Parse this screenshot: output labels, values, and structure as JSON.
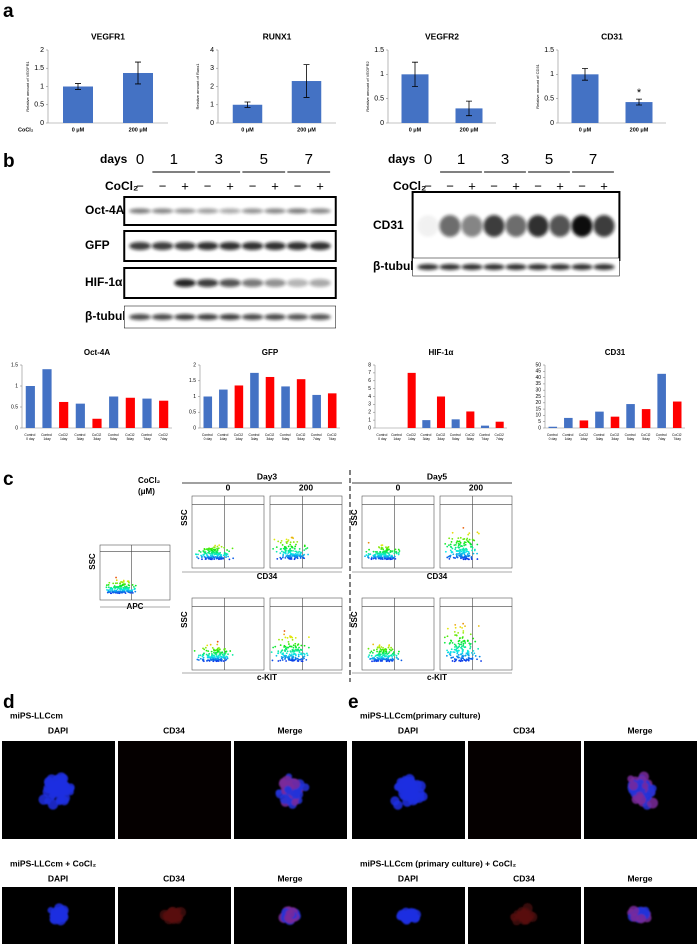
{
  "panel_labels": [
    "a",
    "b",
    "c",
    "d",
    "e"
  ],
  "chart_data": [
    {
      "type": "bar",
      "title": "VEGFR1",
      "y_label": "Relative amount of VEGFR1",
      "x_label": "CoCl₂",
      "categories": [
        "0 μM",
        "200 μM"
      ],
      "values": [
        1.0,
        1.37
      ],
      "errors": [
        0.08,
        0.3
      ],
      "color": "#4472c4",
      "ylim": [
        0,
        2
      ],
      "yticks": [
        0,
        0.5,
        1,
        1.5,
        2
      ]
    },
    {
      "type": "bar",
      "title": "RUNX1",
      "y_label": "Relative amount of Runx1",
      "categories": [
        "0 μM",
        "200 μM"
      ],
      "values": [
        1.0,
        2.3
      ],
      "errors": [
        0.15,
        0.9
      ],
      "color": "#4472c4",
      "ylim": [
        0,
        4
      ],
      "yticks": [
        0,
        1,
        2,
        3,
        4
      ]
    },
    {
      "type": "bar",
      "title": "VEGFR2",
      "y_label": "Relative amount of VEGFR2",
      "categories": [
        "0 μM",
        "200 μM"
      ],
      "values": [
        1.0,
        0.3
      ],
      "errors": [
        0.25,
        0.15
      ],
      "color": "#4472c4",
      "ylim": [
        0,
        1.5
      ],
      "yticks": [
        0,
        0.5,
        1,
        1.5
      ]
    },
    {
      "type": "bar",
      "title": "CD31",
      "y_label": "Relative amount of CD31",
      "categories": [
        "0 μM",
        "200 μM"
      ],
      "values": [
        1.0,
        0.43
      ],
      "errors": [
        0.12,
        0.06
      ],
      "color": "#4472c4",
      "ylim": [
        0,
        1.5
      ],
      "yticks": [
        0,
        0.5,
        1,
        1.5
      ],
      "annotations": [
        {
          "text": "*",
          "category": "200 μM"
        }
      ]
    },
    {
      "type": "bar",
      "title": "Oct-4A",
      "categories": [
        "Control 0 day",
        "Control 1day",
        "CoCl2 1day",
        "Control 3day",
        "CoCl2 3day",
        "Control 5day",
        "CoCl2 5day",
        "Control 7day",
        "CoCl2 7day"
      ],
      "values": [
        1.0,
        1.4,
        0.62,
        0.58,
        0.22,
        0.75,
        0.72,
        0.7,
        0.65
      ],
      "colors": [
        "#4472c4",
        "#4472c4",
        "#ff0000",
        "#4472c4",
        "#ff0000",
        "#4472c4",
        "#ff0000",
        "#4472c4",
        "#ff0000"
      ],
      "ylim": [
        0,
        1.5
      ],
      "yticks": [
        0,
        0.5,
        1,
        1.5
      ]
    },
    {
      "type": "bar",
      "title": "GFP",
      "categories": [
        "Control 0 day",
        "Control 1day",
        "CoCl2 1day",
        "Control 3day",
        "CoCl2 3day",
        "Control 5day",
        "CoCl2 5day",
        "Control 7day",
        "CoCl2 7day"
      ],
      "values": [
        1.0,
        1.22,
        1.35,
        1.75,
        1.62,
        1.32,
        1.55,
        1.05,
        1.1
      ],
      "colors": [
        "#4472c4",
        "#4472c4",
        "#ff0000",
        "#4472c4",
        "#ff0000",
        "#4472c4",
        "#ff0000",
        "#4472c4",
        "#ff0000"
      ],
      "ylim": [
        0,
        2
      ],
      "yticks": [
        0,
        0.5,
        1,
        1.5,
        2
      ]
    },
    {
      "type": "bar",
      "title": "HIF-1α",
      "categories": [
        "Control 0 day",
        "Control 1day",
        "CoCl2 1day",
        "Control 3day",
        "CoCl2 3day",
        "Control 5day",
        "CoCl2 5day",
        "Control 7day",
        "CoCl2 7day"
      ],
      "values": [
        0,
        0,
        7.0,
        1.0,
        4.0,
        1.1,
        2.1,
        0.3,
        0.8
      ],
      "colors": [
        "#4472c4",
        "#4472c4",
        "#ff0000",
        "#4472c4",
        "#ff0000",
        "#4472c4",
        "#ff0000",
        "#4472c4",
        "#ff0000"
      ],
      "ylim": [
        0,
        8
      ],
      "yticks": [
        0,
        1,
        2,
        3,
        4,
        5,
        6,
        7,
        8
      ]
    },
    {
      "type": "bar",
      "title": "CD31",
      "categories": [
        "Control 0 day",
        "Control 1day",
        "CoCl2 1day",
        "Control 3day",
        "CoCl2 3day",
        "Control 5day",
        "CoCl2 5day",
        "Control 7day",
        "CoCl2 7day"
      ],
      "values": [
        1,
        8,
        6,
        13,
        9,
        19,
        15,
        43,
        21
      ],
      "colors": [
        "#4472c4",
        "#4472c4",
        "#ff0000",
        "#4472c4",
        "#ff0000",
        "#4472c4",
        "#ff0000",
        "#4472c4",
        "#ff0000"
      ],
      "ylim": [
        0,
        50
      ],
      "yticks": [
        0,
        5,
        10,
        15,
        20,
        25,
        30,
        35,
        40,
        45,
        50
      ]
    }
  ],
  "western_blot": {
    "left": {
      "days_label": "days",
      "days": [
        "0",
        "1",
        "3",
        "5",
        "7"
      ],
      "treatment_label": "CoCl₂",
      "treatment_signs": [
        "−",
        "−",
        "+",
        "−",
        "+",
        "−",
        "+",
        "−",
        "+"
      ],
      "proteins": [
        "Oct-4A",
        "GFP",
        "HIF-1α",
        "β-tubulin"
      ]
    },
    "right": {
      "days_label": "days",
      "days": [
        "0",
        "1",
        "3",
        "5",
        "7"
      ],
      "treatment_label": "CoCl₂",
      "treatment_signs": [
        "−",
        "−",
        "+",
        "−",
        "+",
        "−",
        "+",
        "−",
        "+"
      ],
      "proteins": [
        "CD31",
        "β-tubulin"
      ]
    }
  },
  "flow_cytometry": {
    "treatment_label": "CoCl₂",
    "unit": "(μM)",
    "days": [
      "Day3",
      "Day5"
    ],
    "doses": [
      "0",
      "200"
    ],
    "y_axis": "SSC",
    "markers": [
      "CD34",
      "c-KIT"
    ],
    "control_marker": "APC"
  },
  "microscopy": {
    "d": {
      "rows": [
        {
          "title": "miPS-LLCcm",
          "channels": [
            "DAPI",
            "CD34",
            "Merge"
          ]
        },
        {
          "title": "miPS-LLCcm + CoCl₂",
          "channels": [
            "DAPI",
            "CD34",
            "Merge"
          ]
        }
      ]
    },
    "e": {
      "rows": [
        {
          "title": "miPS-LLCcm(primary culture)",
          "channels": [
            "DAPI",
            "CD34",
            "Merge"
          ]
        },
        {
          "title": "miPS-LLCcm (primary culture) + CoCl₂",
          "channels": [
            "DAPI",
            "CD34",
            "Merge"
          ]
        }
      ]
    }
  }
}
